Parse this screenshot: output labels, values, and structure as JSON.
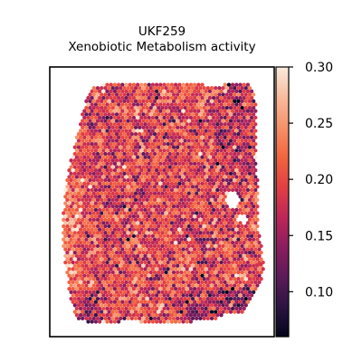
{
  "chart_data": {
    "type": "scatter",
    "title": "UKF259",
    "subtitle": "Xenobiotic Metabolism activity",
    "xlabel": "",
    "ylabel": "",
    "grid": false,
    "axis_ticks": false,
    "colormap": "rocket",
    "colorbar": {
      "range": [
        0.06,
        0.3
      ],
      "ticks": [
        0.1,
        0.15,
        0.2,
        0.25,
        0.3
      ],
      "tick_labels": [
        "0.10",
        "0.15",
        "0.20",
        "0.25",
        "0.30"
      ],
      "colors": [
        "#03051a",
        "#2b1442",
        "#5c1a59",
        "#8c1d5e",
        "#be2758",
        "#e33f43",
        "#f2653f",
        "#f6926a",
        "#f8bc9e",
        "#faebdd"
      ]
    },
    "spot_value_mean": 0.19,
    "spot_value_spread": 0.04
  }
}
